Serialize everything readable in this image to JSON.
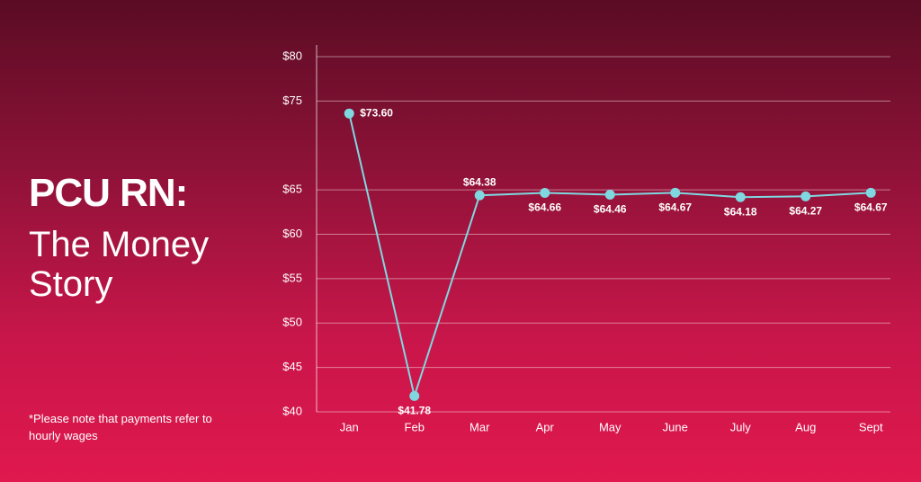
{
  "chart_data": {
    "type": "line",
    "title": "PCU RN:",
    "subtitle": "The Money Story",
    "note": "*Please note that payments refer to hourly wages",
    "categories": [
      "Jan",
      "Feb",
      "Mar",
      "Apr",
      "May",
      "June",
      "July",
      "Aug",
      "Sept"
    ],
    "values": [
      73.6,
      41.78,
      64.38,
      64.66,
      64.46,
      64.67,
      64.18,
      64.27,
      64.67
    ],
    "value_labels": [
      "$73.60",
      "$41.78",
      "$64.38",
      "$64.66",
      "$64.46",
      "$64.67",
      "$64.18",
      "$64.27",
      "$64.67"
    ],
    "color": "#7fd8e0",
    "ylim": [
      40,
      80
    ],
    "yticks": [
      {
        "value": 80,
        "label": "$80"
      },
      {
        "value": 75,
        "label": "$75"
      },
      {
        "value": 65,
        "label": "$65"
      },
      {
        "value": 60,
        "label": "$60"
      },
      {
        "value": 55,
        "label": "$55"
      },
      {
        "value": 50,
        "label": "$50"
      },
      {
        "value": 45,
        "label": "$45"
      },
      {
        "value": 40,
        "label": "$40"
      }
    ],
    "grid": true
  }
}
